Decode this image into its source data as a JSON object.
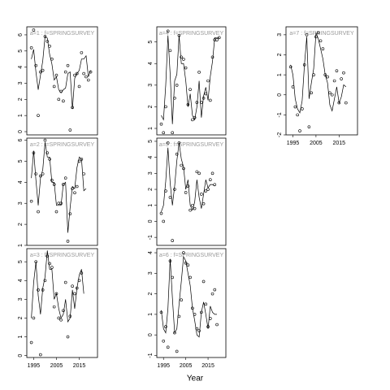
{
  "x_axis_label": "Year",
  "chart_data": [
    {
      "type": "scatter",
      "title": "a=1 : f=SPRINGSURVEY",
      "xlim": [
        1992,
        2023
      ],
      "ylim": [
        -0.2,
        6.5
      ],
      "yticks": [
        0,
        1,
        2,
        3,
        4,
        5,
        6
      ],
      "x": [
        1994,
        1995,
        1996,
        1997,
        1998,
        1999,
        2000,
        2001,
        2002,
        2003,
        2004,
        2005,
        2006,
        2007,
        2008,
        2009,
        2010,
        2011,
        2012,
        2013,
        2014,
        2015,
        2016,
        2017,
        2018,
        2019,
        2020
      ],
      "series": [
        {
          "mode": "points",
          "color": "#000000",
          "values": [
            5.2,
            6.3,
            4.1,
            1.0,
            3.7,
            3.8,
            5.9,
            5.6,
            5.3,
            4.5,
            2.8,
            3.5,
            2.0,
            2.5,
            1.9,
            3.7,
            4.1,
            0.1,
            1.5,
            3.5,
            3.6,
            2.8,
            4.9,
            3.6,
            3.4,
            3.2,
            3.7
          ]
        },
        {
          "mode": "line",
          "color": "#000000",
          "values": [
            4.5,
            5.1,
            3.7,
            2.6,
            3.5,
            4.4,
            5.9,
            5.8,
            4.8,
            4.2,
            3.2,
            3.4,
            2.6,
            2.4,
            2.6,
            2.7,
            3.6,
            3.7,
            1.4,
            3.3,
            3.6,
            3.8,
            4.5,
            4.5,
            4.7,
            3.4,
            3.8
          ]
        }
      ]
    },
    {
      "type": "scatter",
      "title": "a=2 : f=SPRINGSURVEY",
      "xlim": [
        1992,
        2023
      ],
      "ylim": [
        1,
        6.1
      ],
      "yticks": [
        1,
        2,
        3,
        4,
        5,
        6
      ],
      "x": [
        1994,
        1995,
        1996,
        1997,
        1998,
        1999,
        2000,
        2001,
        2002,
        2003,
        2004,
        2005,
        2006,
        2007,
        2008,
        2009,
        2010,
        2011,
        2012,
        2013,
        2014,
        2015,
        2016,
        2017,
        2018,
        2019,
        2020
      ],
      "series": [
        {
          "mode": "points",
          "color": "#000000",
          "values": [
            3.1,
            5.4,
            4.4,
            2.6,
            4.3,
            4.4,
            6.0,
            5.4,
            5.1,
            4.1,
            3.9,
            2.6,
            3.0,
            3.0,
            3.9,
            4.2,
            1.2,
            2.5,
            3.7,
            3.5,
            3.8,
            5.0,
            5.1,
            4.4,
            null,
            null,
            null
          ]
        },
        {
          "mode": "line",
          "color": "#000000",
          "values": [
            4.2,
            5.5,
            4.1,
            2.9,
            4.2,
            4.6,
            5.9,
            5.2,
            5.2,
            4.0,
            4.0,
            2.9,
            2.9,
            2.9,
            3.9,
            4.0,
            1.6,
            2.8,
            3.8,
            3.7,
            4.7,
            5.2,
            5.1,
            3.6,
            3.7,
            null,
            null
          ]
        }
      ]
    },
    {
      "type": "scatter",
      "title": "a=3 : f=SPRINGSURVEY",
      "xlim": [
        1992,
        2023
      ],
      "ylim": [
        -0.1,
        5.7
      ],
      "yticks": [
        0,
        1,
        2,
        3,
        4,
        5
      ],
      "xticks": [
        1995,
        2005,
        2015
      ],
      "x": [
        1994,
        1995,
        1996,
        1997,
        1998,
        1999,
        2000,
        2001,
        2002,
        2003,
        2004,
        2005,
        2006,
        2007,
        2008,
        2009,
        2010,
        2011,
        2012,
        2013,
        2014,
        2015,
        2016,
        2017,
        2018,
        2019,
        2020
      ],
      "series": [
        {
          "mode": "points",
          "color": "#000000",
          "values": [
            0.7,
            2.0,
            5.0,
            3.5,
            0.05,
            3.5,
            4.0,
            5.3,
            4.9,
            4.7,
            2.6,
            3.3,
            2.0,
            1.9,
            2.4,
            3.9,
            1.0,
            2.1,
            3.7,
            3.3,
            3.6,
            4.0,
            4.4,
            null,
            null,
            null,
            null
          ]
        },
        {
          "mode": "line",
          "color": "#000000",
          "values": [
            2.0,
            3.9,
            5.0,
            3.2,
            2.2,
            3.6,
            4.2,
            5.6,
            4.6,
            4.6,
            3.0,
            3.3,
            2.5,
            2.0,
            2.2,
            3.0,
            1.8,
            2.0,
            3.5,
            2.5,
            3.6,
            4.3,
            4.6,
            3.3,
            null,
            null,
            null
          ]
        }
      ]
    },
    {
      "type": "scatter",
      "title": "a=4 : f=SPRINGSURVEY",
      "xlim": [
        1992,
        2023
      ],
      "ylim": [
        0.7,
        5.7
      ],
      "yticks": [
        1,
        2,
        3,
        4,
        5
      ],
      "x": [
        1994,
        1995,
        1996,
        1997,
        1998,
        1999,
        2000,
        2001,
        2002,
        2003,
        2004,
        2005,
        2006,
        2007,
        2008,
        2009,
        2010,
        2011,
        2012,
        2013,
        2014,
        2015,
        2016,
        2017,
        2018,
        2019,
        2020
      ],
      "series": [
        {
          "mode": "points",
          "color": "#000000",
          "values": [
            1.2,
            0.8,
            2.0,
            5.5,
            4.6,
            0.8,
            2.4,
            3.0,
            5.3,
            4.3,
            4.2,
            3.8,
            2.1,
            2.8,
            1.4,
            1.5,
            2.2,
            3.6,
            2.2,
            2.4,
            2.6,
            3.2,
            2.3,
            4.3,
            5.1,
            5.1,
            5.2
          ]
        },
        {
          "mode": "line",
          "color": "#000000",
          "values": [
            1.6,
            1.4,
            3.0,
            5.3,
            3.5,
            1.2,
            3.2,
            3.5,
            5.3,
            4.0,
            4.0,
            3.2,
            2.0,
            2.6,
            1.6,
            1.4,
            2.0,
            3.2,
            1.5,
            2.5,
            2.9,
            2.3,
            3.4,
            4.1,
            5.2,
            5.2,
            5.2
          ]
        }
      ]
    },
    {
      "type": "scatter",
      "title": "a=5 : f=SPRINGSURVEY",
      "xlim": [
        1992,
        2023
      ],
      "ylim": [
        -1.5,
        5.2
      ],
      "yticks": [
        -1,
        0,
        1,
        2,
        3,
        4,
        5
      ],
      "x": [
        1994,
        1995,
        1996,
        1997,
        1998,
        1999,
        2000,
        2001,
        2002,
        2003,
        2004,
        2005,
        2006,
        2007,
        2008,
        2009,
        2010,
        2011,
        2012,
        2013,
        2014,
        2015,
        2016,
        2017,
        2018,
        2019,
        2020
      ],
      "series": [
        {
          "mode": "points",
          "color": "#000000",
          "values": [
            0.5,
            0.0,
            1.9,
            4.9,
            1.5,
            -1.2,
            2.0,
            4.2,
            4.9,
            3.5,
            3.3,
            1.8,
            2.2,
            0.7,
            1.0,
            0.8,
            3.1,
            3.0,
            1.7,
            1.1,
            1.9,
            2.0,
            2.6,
            3.0,
            2.3,
            null,
            null
          ]
        },
        {
          "mode": "line",
          "color": "#000000",
          "values": [
            0.6,
            1.0,
            2.5,
            4.6,
            2.4,
            1.0,
            2.2,
            3.8,
            4.9,
            3.9,
            3.4,
            2.0,
            2.6,
            1.0,
            0.7,
            1.2,
            2.6,
            1.5,
            0.8,
            1.7,
            2.6,
            2.1,
            2.3,
            2.3,
            2.2,
            null,
            null
          ]
        }
      ]
    },
    {
      "type": "scatter",
      "title": "a=6 : f=SPRINGSURVEY",
      "xlim": [
        1992,
        2023
      ],
      "ylim": [
        -1.1,
        4.2
      ],
      "yticks": [
        -1,
        0,
        1,
        2,
        3,
        4
      ],
      "xticks": [
        1995,
        2005,
        2015
      ],
      "x": [
        1994,
        1995,
        1996,
        1997,
        1998,
        1999,
        2000,
        2001,
        2002,
        2003,
        2004,
        2005,
        2006,
        2007,
        2008,
        2009,
        2010,
        2011,
        2012,
        2013,
        2014,
        2015,
        2016,
        2017,
        2018,
        2019,
        2020
      ],
      "series": [
        {
          "mode": "points",
          "color": "#000000",
          "values": [
            1.1,
            -0.3,
            0.4,
            -0.6,
            3.6,
            2.8,
            0.1,
            -0.8,
            0.9,
            1.7,
            4.0,
            3.5,
            3.4,
            2.8,
            1.3,
            1.0,
            0.3,
            0.2,
            1.1,
            2.6,
            1.5,
            0.4,
            0.8,
            2.0,
            2.2,
            0.5,
            null
          ]
        },
        {
          "mode": "line",
          "color": "#000000",
          "values": [
            1.2,
            0.3,
            0.1,
            1.3,
            3.7,
            1.8,
            0.1,
            0.3,
            1.5,
            2.6,
            3.8,
            3.6,
            3.0,
            2.4,
            1.3,
            0.7,
            0.0,
            -0.1,
            1.1,
            1.6,
            1.0,
            0.3,
            1.4,
            1.1,
            1.0,
            1.0,
            null
          ]
        }
      ]
    },
    {
      "type": "scatter",
      "title": "a=7 : f=SPRINGSURVEY",
      "xlim": [
        1992,
        2023
      ],
      "ylim": [
        -2,
        3.4
      ],
      "yticks": [
        -2,
        -1,
        0,
        1,
        2,
        3
      ],
      "xticks": [
        1995,
        2005,
        2015
      ],
      "x": [
        1994,
        1995,
        1996,
        1997,
        1998,
        1999,
        2000,
        2001,
        2002,
        2003,
        2004,
        2005,
        2006,
        2007,
        2008,
        2009,
        2010,
        2011,
        2012,
        2013,
        2014,
        2015,
        2016,
        2017,
        2018,
        2019,
        2020
      ],
      "series": [
        {
          "mode": "points",
          "color": "#000000",
          "values": [
            1.4,
            0.4,
            -0.6,
            -1.0,
            -1.8,
            -0.7,
            1.5,
            3.0,
            -1.6,
            0.1,
            1.0,
            2.9,
            3.1,
            2.7,
            2.3,
            1.0,
            0.9,
            0.1,
            0.0,
            0.7,
            1.2,
            -0.4,
            0.8,
            1.1,
            -0.4,
            null,
            null
          ]
        },
        {
          "mode": "line",
          "color": "#000000",
          "values": [
            1.5,
            1.0,
            -0.2,
            -0.7,
            -0.9,
            -0.3,
            1.5,
            2.9,
            -0.2,
            0.6,
            1.3,
            3.1,
            2.8,
            2.3,
            1.8,
            1.0,
            0.6,
            -0.5,
            -0.8,
            -0.2,
            0.4,
            -0.4,
            -0.1,
            0.5,
            0.4,
            null,
            null
          ]
        }
      ]
    }
  ]
}
